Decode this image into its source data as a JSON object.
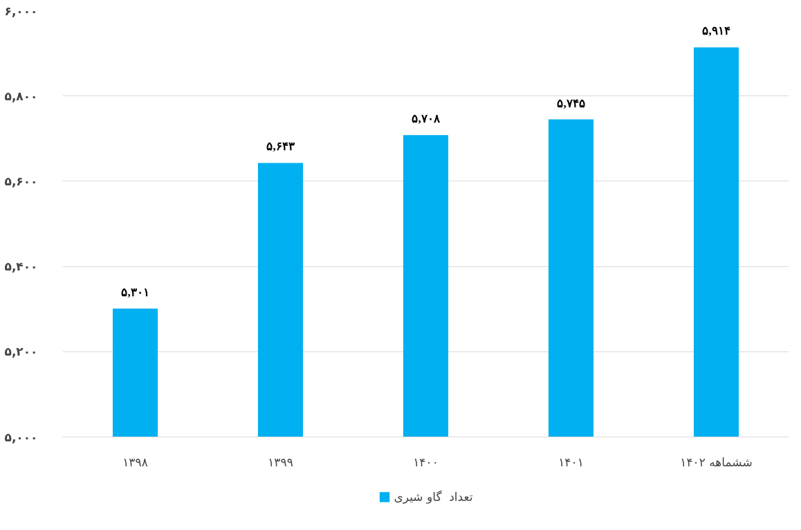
{
  "chart_data": {
    "type": "bar",
    "categories": [
      "۱۳۹۸",
      "۱۳۹۹",
      "۱۴۰۰",
      "۱۴۰۱",
      "ششماهه ۱۴۰۲"
    ],
    "series": [
      {
        "name": "تعداد  گاو شیری",
        "color": "#00b0f0",
        "values": [
          5301,
          5643,
          5708,
          5745,
          5914
        ],
        "value_labels": [
          "۵,۳۰۱",
          "۵,۶۴۳",
          "۵,۷۰۸",
          "۵,۷۴۵",
          "۵,۹۱۴"
        ]
      }
    ],
    "ylim": [
      5000,
      6000
    ],
    "yticks": [
      {
        "value": 5000,
        "label": "۵,۰۰۰"
      },
      {
        "value": 5200,
        "label": "۵,۲۰۰"
      },
      {
        "value": 5400,
        "label": "۵,۴۰۰"
      },
      {
        "value": 5600,
        "label": "۵,۶۰۰"
      },
      {
        "value": 5800,
        "label": "۵,۸۰۰"
      },
      {
        "value": 6000,
        "label": "۶,۰۰۰"
      }
    ],
    "grid": "y",
    "legend": "bottom"
  }
}
